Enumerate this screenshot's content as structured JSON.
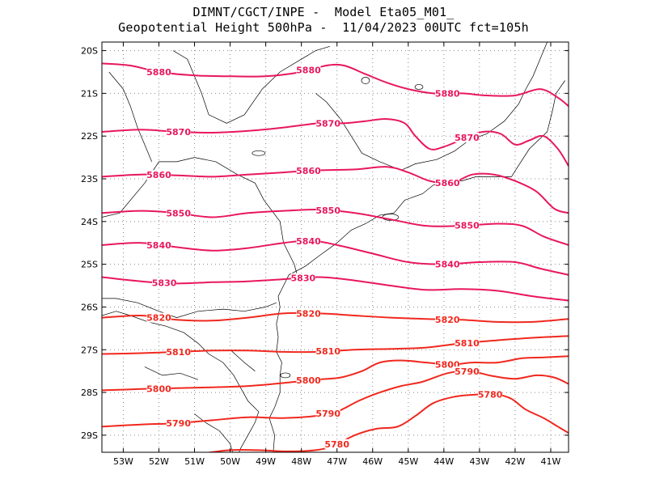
{
  "title": {
    "line1": "DIMNT/CGCT/INPE -  Model Eta05_M01_",
    "line2": "Geopotential Height 500hPa -  11/04/2023 00UTC fct=105h"
  },
  "map": {
    "lon_range": [
      -53.6,
      -40.5
    ],
    "lat_range": [
      -29.4,
      -19.8
    ],
    "x_ticks": [
      {
        "value": -53,
        "label": "53W"
      },
      {
        "value": -52,
        "label": "52W"
      },
      {
        "value": -51,
        "label": "51W"
      },
      {
        "value": -50,
        "label": "50W"
      },
      {
        "value": -49,
        "label": "49W"
      },
      {
        "value": -48,
        "label": "48W"
      },
      {
        "value": -47,
        "label": "47W"
      },
      {
        "value": -46,
        "label": "46W"
      },
      {
        "value": -45,
        "label": "45W"
      },
      {
        "value": -44,
        "label": "44W"
      },
      {
        "value": -43,
        "label": "43W"
      },
      {
        "value": -42,
        "label": "42W"
      },
      {
        "value": -41,
        "label": "41W"
      }
    ],
    "y_ticks": [
      {
        "value": -20,
        "label": "20S"
      },
      {
        "value": -21,
        "label": "21S"
      },
      {
        "value": -22,
        "label": "22S"
      },
      {
        "value": -23,
        "label": "23S"
      },
      {
        "value": -24,
        "label": "24S"
      },
      {
        "value": -25,
        "label": "25S"
      },
      {
        "value": -26,
        "label": "26S"
      },
      {
        "value": -27,
        "label": "27S"
      },
      {
        "value": -28,
        "label": "28S"
      },
      {
        "value": -29,
        "label": "29S"
      }
    ],
    "grid": true,
    "contours": [
      {
        "level": 5880,
        "color": "#e8175d",
        "labels": [
          "5880",
          "5880",
          "5880"
        ],
        "lines": [
          [
            [
              -53.6,
              -20.3
            ],
            [
              -52.8,
              -20.35
            ],
            [
              -52,
              -20.5
            ],
            [
              -51,
              -20.58
            ],
            [
              -50,
              -20.6
            ],
            [
              -49,
              -20.6
            ],
            [
              -48,
              -20.5
            ],
            [
              -47.3,
              -20.35
            ],
            [
              -46.8,
              -20.35
            ],
            [
              -46.2,
              -20.55
            ],
            [
              -45.6,
              -20.75
            ],
            [
              -45,
              -20.9
            ],
            [
              -44.3,
              -21.0
            ],
            [
              -43.5,
              -21.0
            ],
            [
              -42.8,
              -21.05
            ],
            [
              -42,
              -21.05
            ],
            [
              -41.3,
              -20.9
            ],
            [
              -40.8,
              -21.1
            ],
            [
              -40.5,
              -21.3
            ]
          ]
        ]
      },
      {
        "level": 5870,
        "color": "#e8175d",
        "labels": [
          "5870",
          "5870",
          "5870"
        ],
        "lines": [
          [
            [
              -53.6,
              -21.9
            ],
            [
              -52.5,
              -21.85
            ],
            [
              -51.5,
              -21.9
            ],
            [
              -50.5,
              -21.92
            ],
            [
              -49.5,
              -21.88
            ],
            [
              -48.5,
              -21.8
            ],
            [
              -47.5,
              -21.7
            ],
            [
              -46.8,
              -21.7
            ],
            [
              -46.2,
              -21.65
            ],
            [
              -45.6,
              -21.6
            ],
            [
              -45.1,
              -21.7
            ],
            [
              -44.8,
              -22.0
            ],
            [
              -44.4,
              -22.3
            ],
            [
              -44.0,
              -22.25
            ],
            [
              -43.4,
              -22.05
            ],
            [
              -42.9,
              -21.9
            ],
            [
              -42.4,
              -21.95
            ],
            [
              -42.0,
              -22.2
            ],
            [
              -41.6,
              -22.1
            ],
            [
              -41.2,
              -22.0
            ],
            [
              -40.8,
              -22.3
            ],
            [
              -40.5,
              -22.7
            ]
          ]
        ]
      },
      {
        "level": 5860,
        "color": "#e8175d",
        "labels": [
          "5860",
          "5860",
          "5860"
        ],
        "lines": [
          [
            [
              -53.6,
              -22.95
            ],
            [
              -52.5,
              -22.9
            ],
            [
              -51.5,
              -22.92
            ],
            [
              -50.5,
              -22.95
            ],
            [
              -49.5,
              -22.9
            ],
            [
              -48.5,
              -22.85
            ],
            [
              -47.5,
              -22.8
            ],
            [
              -46.5,
              -22.78
            ],
            [
              -45.6,
              -22.72
            ],
            [
              -45.0,
              -22.85
            ],
            [
              -44.4,
              -23.05
            ],
            [
              -43.8,
              -23.1
            ],
            [
              -43.2,
              -22.9
            ],
            [
              -42.6,
              -22.9
            ],
            [
              -42.0,
              -23.05
            ],
            [
              -41.4,
              -23.3
            ],
            [
              -40.9,
              -23.7
            ],
            [
              -40.5,
              -23.8
            ]
          ]
        ]
      },
      {
        "level": 5850,
        "color": "#e8175d",
        "labels": [
          "5850",
          "5850",
          "5850"
        ],
        "lines": [
          [
            [
              -53.6,
              -23.8
            ],
            [
              -52.5,
              -23.75
            ],
            [
              -51.5,
              -23.8
            ],
            [
              -50.5,
              -23.9
            ],
            [
              -49.5,
              -23.8
            ],
            [
              -48.5,
              -23.75
            ],
            [
              -47.5,
              -23.72
            ],
            [
              -46.5,
              -23.8
            ],
            [
              -45.5,
              -23.95
            ],
            [
              -44.5,
              -24.1
            ],
            [
              -43.5,
              -24.1
            ],
            [
              -42.5,
              -24.05
            ],
            [
              -41.8,
              -24.1
            ],
            [
              -41.2,
              -24.35
            ],
            [
              -40.5,
              -24.55
            ]
          ]
        ]
      },
      {
        "level": 5840,
        "color": "#e8175d",
        "labels": [
          "5840",
          "5840",
          "5840"
        ],
        "lines": [
          [
            [
              -53.6,
              -24.55
            ],
            [
              -52.5,
              -24.5
            ],
            [
              -51.5,
              -24.6
            ],
            [
              -50.5,
              -24.68
            ],
            [
              -49.5,
              -24.62
            ],
            [
              -48.5,
              -24.5
            ],
            [
              -47.7,
              -24.45
            ],
            [
              -47.0,
              -24.55
            ],
            [
              -46,
              -24.75
            ],
            [
              -45,
              -24.95
            ],
            [
              -44,
              -25.0
            ],
            [
              -43,
              -24.95
            ],
            [
              -42,
              -24.95
            ],
            [
              -41.3,
              -25.1
            ],
            [
              -40.5,
              -25.25
            ]
          ]
        ]
      },
      {
        "level": 5830,
        "color": "#e8175d",
        "labels": [
          "5830",
          "5830"
        ],
        "lines": [
          [
            [
              -53.6,
              -25.3
            ],
            [
              -52.5,
              -25.4
            ],
            [
              -51.5,
              -25.45
            ],
            [
              -50.5,
              -25.42
            ],
            [
              -49.5,
              -25.4
            ],
            [
              -48.5,
              -25.35
            ],
            [
              -47.5,
              -25.3
            ],
            [
              -46.5,
              -25.38
            ],
            [
              -45.5,
              -25.5
            ],
            [
              -44.5,
              -25.6
            ],
            [
              -43.5,
              -25.58
            ],
            [
              -42.5,
              -25.62
            ],
            [
              -41.5,
              -25.75
            ],
            [
              -40.5,
              -25.85
            ]
          ]
        ]
      },
      {
        "level": 5820,
        "color": "#f0281e",
        "labels": [
          "5820",
          "5820",
          "5820"
        ],
        "lines": [
          [
            [
              -53.6,
              -26.25
            ],
            [
              -52.5,
              -26.2
            ],
            [
              -51.5,
              -26.3
            ],
            [
              -50.5,
              -26.32
            ],
            [
              -49.5,
              -26.25
            ],
            [
              -48.5,
              -26.15
            ],
            [
              -47.5,
              -26.15
            ],
            [
              -46.5,
              -26.2
            ],
            [
              -45.5,
              -26.25
            ],
            [
              -44.5,
              -26.28
            ],
            [
              -43.5,
              -26.3
            ],
            [
              -42.5,
              -26.35
            ],
            [
              -41.5,
              -26.35
            ],
            [
              -40.5,
              -26.28
            ]
          ]
        ]
      },
      {
        "level": 5810,
        "color": "#f0281e",
        "labels": [
          "5810",
          "5810",
          "5810"
        ],
        "lines": [
          [
            [
              -53.6,
              -27.1
            ],
            [
              -52.5,
              -27.08
            ],
            [
              -51.5,
              -27.05
            ],
            [
              -50.5,
              -27.02
            ],
            [
              -49.5,
              -27.02
            ],
            [
              -48.5,
              -27.05
            ],
            [
              -47.5,
              -27.05
            ],
            [
              -46.5,
              -27.0
            ],
            [
              -45.5,
              -26.98
            ],
            [
              -44.5,
              -26.95
            ],
            [
              -43.5,
              -26.85
            ],
            [
              -42.5,
              -26.78
            ],
            [
              -41.5,
              -26.72
            ],
            [
              -40.5,
              -26.68
            ]
          ]
        ]
      },
      {
        "level": 5800,
        "color": "#f0281e",
        "labels": [
          "5800",
          "5800",
          "5800"
        ],
        "lines": [
          [
            [
              -53.6,
              -27.95
            ],
            [
              -52.5,
              -27.92
            ],
            [
              -51.5,
              -27.9
            ],
            [
              -50.5,
              -27.88
            ],
            [
              -49.5,
              -27.85
            ],
            [
              -48.5,
              -27.78
            ],
            [
              -47.6,
              -27.7
            ],
            [
              -46.9,
              -27.65
            ],
            [
              -46.3,
              -27.5
            ],
            [
              -45.8,
              -27.3
            ],
            [
              -45.2,
              -27.25
            ],
            [
              -44.5,
              -27.3
            ],
            [
              -43.8,
              -27.35
            ],
            [
              -43.2,
              -27.3
            ],
            [
              -42.5,
              -27.3
            ],
            [
              -41.8,
              -27.2
            ],
            [
              -41.2,
              -27.18
            ],
            [
              -40.5,
              -27.15
            ]
          ]
        ]
      },
      {
        "level": 5790,
        "color": "#f0281e",
        "labels": [
          "5790",
          "5790",
          "5790"
        ],
        "lines": [
          [
            [
              -53.6,
              -28.8
            ],
            [
              -52.5,
              -28.75
            ],
            [
              -51.5,
              -28.72
            ],
            [
              -50.5,
              -28.65
            ],
            [
              -49.5,
              -28.58
            ],
            [
              -48.5,
              -28.6
            ],
            [
              -47.6,
              -28.55
            ],
            [
              -47.0,
              -28.45
            ],
            [
              -46.4,
              -28.2
            ],
            [
              -45.8,
              -28.0
            ],
            [
              -45.2,
              -27.85
            ],
            [
              -44.6,
              -27.75
            ],
            [
              -43.9,
              -27.55
            ],
            [
              -43.3,
              -27.5
            ],
            [
              -42.6,
              -27.62
            ],
            [
              -42.0,
              -27.68
            ],
            [
              -41.4,
              -27.6
            ],
            [
              -40.9,
              -27.65
            ],
            [
              -40.5,
              -27.8
            ]
          ]
        ]
      },
      {
        "level": 5780,
        "color": "#f0281e",
        "labels": [
          "5780",
          "5780"
        ],
        "lines": [
          [
            [
              -50.7,
              -29.42
            ],
            [
              -50.0,
              -29.35
            ],
            [
              -49.2,
              -29.35
            ],
            [
              -48.4,
              -29.38
            ],
            [
              -47.6,
              -29.35
            ],
            [
              -47.1,
              -29.25
            ],
            [
              -46.5,
              -29.0
            ],
            [
              -45.9,
              -28.85
            ],
            [
              -45.3,
              -28.8
            ],
            [
              -44.8,
              -28.55
            ],
            [
              -44.3,
              -28.25
            ],
            [
              -43.7,
              -28.1
            ],
            [
              -43.1,
              -28.05
            ],
            [
              -42.5,
              -28.05
            ],
            [
              -42.1,
              -28.15
            ],
            [
              -41.7,
              -28.4
            ],
            [
              -41.2,
              -28.6
            ],
            [
              -40.8,
              -28.8
            ],
            [
              -40.5,
              -28.95
            ]
          ]
        ]
      }
    ]
  }
}
